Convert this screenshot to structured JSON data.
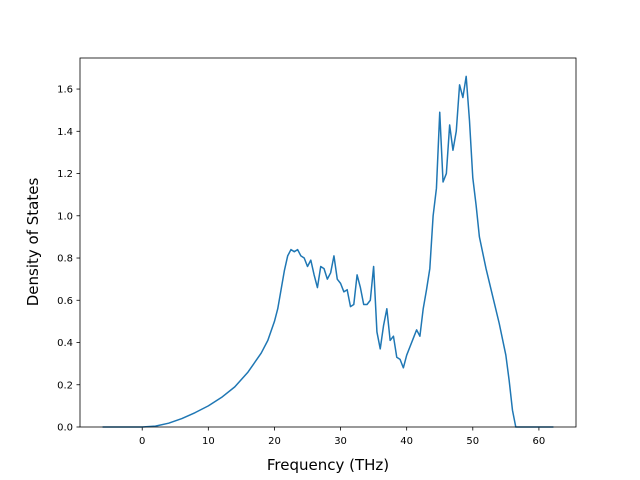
{
  "chart_data": {
    "type": "line",
    "xlabel": "Frequency (THz)",
    "ylabel": "Density of States",
    "x": [
      -6,
      -4,
      -2,
      0,
      2,
      4,
      6,
      8,
      10,
      12,
      14,
      16,
      18,
      19,
      20,
      20.5,
      21,
      21.5,
      22,
      22.5,
      23,
      23.5,
      24,
      24.5,
      25,
      25.5,
      26,
      26.5,
      27,
      27.5,
      28,
      28.5,
      29,
      29.5,
      30,
      30.5,
      31,
      31.5,
      32,
      32.5,
      33,
      33.5,
      34,
      34.5,
      35,
      35.5,
      36,
      36.5,
      37,
      37.5,
      38,
      38.5,
      39,
      39.5,
      40,
      40.5,
      41,
      41.5,
      42,
      42.5,
      43,
      43.5,
      44,
      44.5,
      45,
      45.5,
      46,
      46.5,
      47,
      47.5,
      48,
      48.5,
      49,
      49.5,
      50,
      50.5,
      51,
      52,
      53,
      54,
      55,
      55.5,
      56,
      56.5,
      58,
      60,
      62.2
    ],
    "series": [
      {
        "color": "#1f77b4",
        "values": [
          0,
          0,
          0,
          0,
          0.004,
          0.018,
          0.04,
          0.068,
          0.1,
          0.14,
          0.19,
          0.26,
          0.35,
          0.41,
          0.5,
          0.56,
          0.65,
          0.74,
          0.81,
          0.84,
          0.83,
          0.84,
          0.81,
          0.8,
          0.76,
          0.79,
          0.72,
          0.66,
          0.76,
          0.75,
          0.7,
          0.73,
          0.81,
          0.7,
          0.68,
          0.64,
          0.65,
          0.57,
          0.58,
          0.72,
          0.66,
          0.58,
          0.58,
          0.6,
          0.76,
          0.45,
          0.37,
          0.48,
          0.56,
          0.41,
          0.43,
          0.33,
          0.32,
          0.28,
          0.34,
          0.38,
          0.42,
          0.46,
          0.43,
          0.56,
          0.65,
          0.75,
          1.0,
          1.13,
          1.49,
          1.16,
          1.2,
          1.43,
          1.31,
          1.4,
          1.62,
          1.56,
          1.66,
          1.45,
          1.18,
          1.05,
          0.9,
          0.75,
          0.62,
          0.49,
          0.34,
          0.22,
          0.08,
          0,
          0,
          0,
          0
        ]
      }
    ],
    "xlim": [
      -9.41,
      65.61
    ],
    "ylim": [
      0,
      1.747
    ],
    "xticks": [
      0,
      10,
      20,
      30,
      40,
      50,
      60
    ],
    "yticks": [
      {
        "value": 0,
        "label": "0.0"
      },
      0.2,
      0.4,
      0.6,
      0.8,
      {
        "value": 1,
        "label": "1.0"
      },
      1.2,
      1.4,
      1.6
    ]
  }
}
